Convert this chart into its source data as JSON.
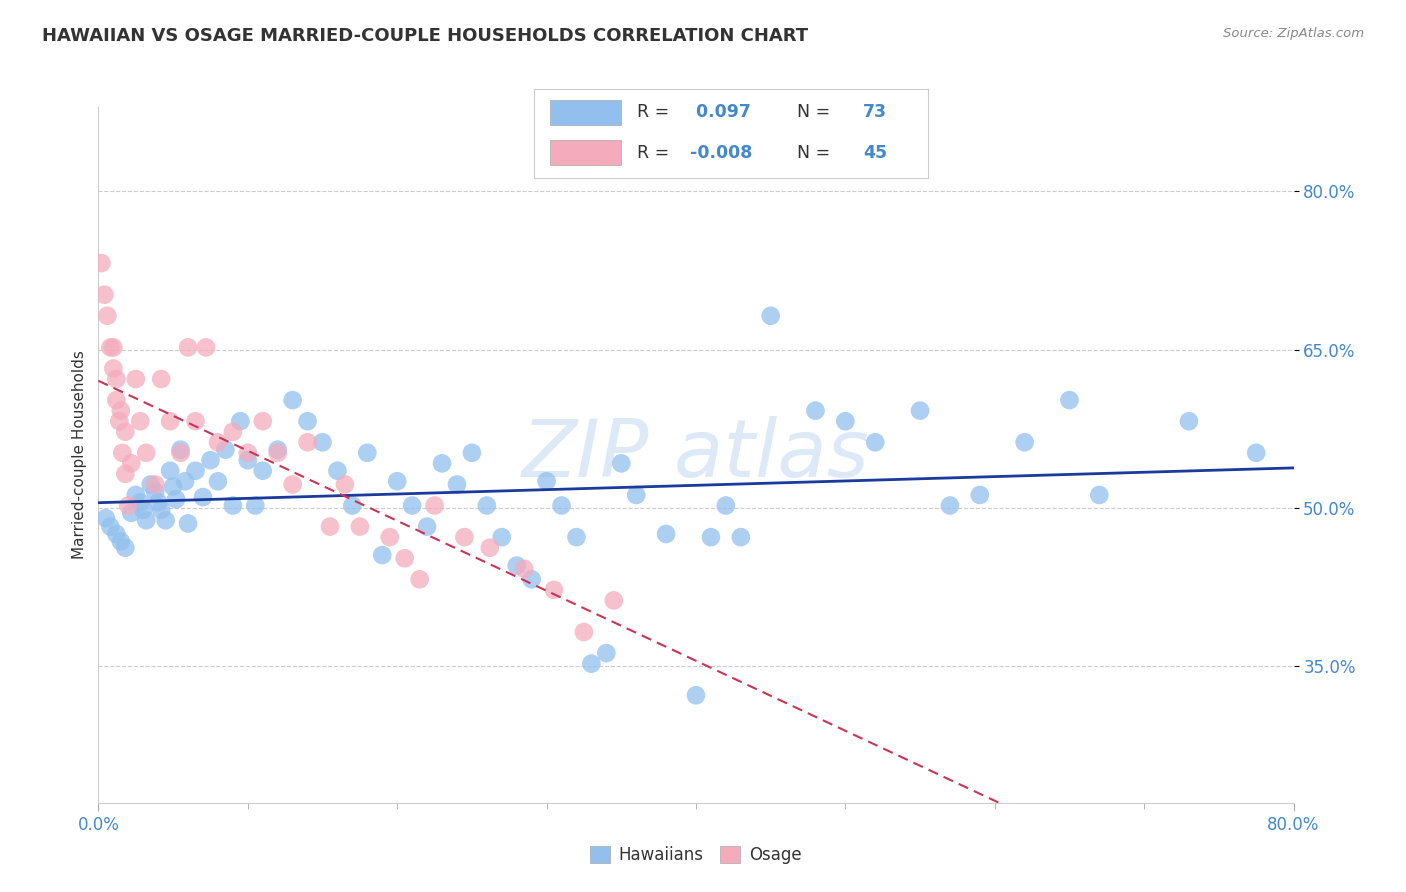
{
  "title": "HAWAIIAN VS OSAGE MARRIED-COUPLE HOUSEHOLDS CORRELATION CHART",
  "source": "Source: ZipAtlas.com",
  "ylabel": "Married-couple Households",
  "xmin": 0.0,
  "xmax": 0.8,
  "ymin": 0.22,
  "ymax": 0.88,
  "ytick_positions": [
    0.35,
    0.5,
    0.65,
    0.8
  ],
  "ytick_labels": [
    "35.0%",
    "50.0%",
    "65.0%",
    "80.0%"
  ],
  "blue_color": "#92BFED",
  "pink_color": "#F4ABBC",
  "blue_line_color": "#1A3A9C",
  "pink_line_color": "#CC3355",
  "legend_r1_label": "R = ",
  "legend_r1_val": " 0.097",
  "legend_n1_label": "N = ",
  "legend_n1_val": "73",
  "legend_r2_label": "R = ",
  "legend_r2_val": "-0.008",
  "legend_n2_label": "N = ",
  "legend_n2_val": "45",
  "text_color": "#333333",
  "value_color": "#4488CC",
  "watermark_color": "#BDD5EE",
  "hawaiians_x": [
    0.005,
    0.008,
    0.012,
    0.015,
    0.018,
    0.022,
    0.025,
    0.028,
    0.03,
    0.032,
    0.035,
    0.038,
    0.04,
    0.042,
    0.045,
    0.048,
    0.05,
    0.052,
    0.055,
    0.058,
    0.06,
    0.065,
    0.07,
    0.075,
    0.08,
    0.085,
    0.09,
    0.095,
    0.1,
    0.105,
    0.11,
    0.12,
    0.13,
    0.14,
    0.15,
    0.16,
    0.17,
    0.18,
    0.19,
    0.2,
    0.21,
    0.22,
    0.23,
    0.24,
    0.25,
    0.26,
    0.27,
    0.28,
    0.29,
    0.3,
    0.31,
    0.32,
    0.33,
    0.34,
    0.35,
    0.36,
    0.38,
    0.4,
    0.41,
    0.42,
    0.43,
    0.45,
    0.48,
    0.5,
    0.52,
    0.55,
    0.57,
    0.59,
    0.62,
    0.65,
    0.67,
    0.73,
    0.775
  ],
  "hawaiians_y": [
    0.49,
    0.482,
    0.475,
    0.468,
    0.462,
    0.495,
    0.512,
    0.505,
    0.498,
    0.488,
    0.522,
    0.515,
    0.505,
    0.498,
    0.488,
    0.535,
    0.52,
    0.508,
    0.555,
    0.525,
    0.485,
    0.535,
    0.51,
    0.545,
    0.525,
    0.555,
    0.502,
    0.582,
    0.545,
    0.502,
    0.535,
    0.555,
    0.602,
    0.582,
    0.562,
    0.535,
    0.502,
    0.552,
    0.455,
    0.525,
    0.502,
    0.482,
    0.542,
    0.522,
    0.552,
    0.502,
    0.472,
    0.445,
    0.432,
    0.525,
    0.502,
    0.472,
    0.352,
    0.362,
    0.542,
    0.512,
    0.475,
    0.322,
    0.472,
    0.502,
    0.472,
    0.682,
    0.592,
    0.582,
    0.562,
    0.592,
    0.502,
    0.512,
    0.562,
    0.602,
    0.512,
    0.582,
    0.552
  ],
  "osage_x": [
    0.002,
    0.004,
    0.006,
    0.008,
    0.01,
    0.012,
    0.014,
    0.016,
    0.018,
    0.02,
    0.01,
    0.012,
    0.015,
    0.018,
    0.022,
    0.025,
    0.028,
    0.032,
    0.038,
    0.042,
    0.048,
    0.055,
    0.06,
    0.065,
    0.072,
    0.08,
    0.09,
    0.1,
    0.11,
    0.12,
    0.13,
    0.14,
    0.155,
    0.165,
    0.175,
    0.195,
    0.205,
    0.215,
    0.225,
    0.245,
    0.262,
    0.285,
    0.305,
    0.325,
    0.345
  ],
  "osage_y": [
    0.732,
    0.702,
    0.682,
    0.652,
    0.632,
    0.602,
    0.582,
    0.552,
    0.532,
    0.502,
    0.652,
    0.622,
    0.592,
    0.572,
    0.542,
    0.622,
    0.582,
    0.552,
    0.522,
    0.622,
    0.582,
    0.552,
    0.652,
    0.582,
    0.652,
    0.562,
    0.572,
    0.552,
    0.582,
    0.552,
    0.522,
    0.562,
    0.482,
    0.522,
    0.482,
    0.472,
    0.452,
    0.432,
    0.502,
    0.472,
    0.462,
    0.442,
    0.422,
    0.382,
    0.412
  ]
}
